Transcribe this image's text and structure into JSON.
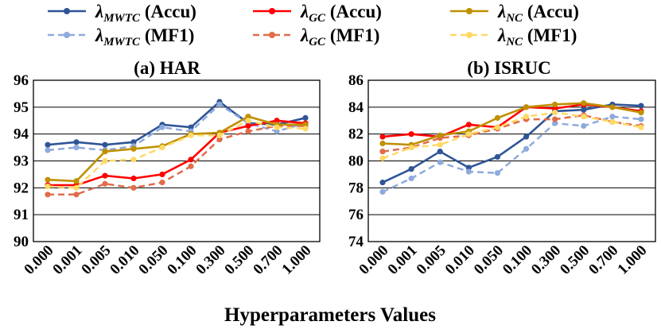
{
  "chart_data": [
    {
      "type": "line",
      "title": "(a) HAR",
      "xlabel": "Hyperparameters Values",
      "ylabel": "",
      "categories": [
        "0.000",
        "0.001",
        "0.005",
        "0.010",
        "0.050",
        "0.100",
        "0.300",
        "0.500",
        "0.700",
        "1.000"
      ],
      "ylim": [
        90,
        96
      ],
      "yticks": [
        "90",
        "91",
        "92",
        "93",
        "94",
        "95",
        "96"
      ],
      "series": [
        {
          "id": "mwtc-accu",
          "name": "MWTC (Accu)",
          "color": "#2f5597",
          "dashed": false,
          "values": [
            93.6,
            93.7,
            93.6,
            93.7,
            94.35,
            94.25,
            95.2,
            94.4,
            94.35,
            94.6
          ]
        },
        {
          "id": "mwtc-mf1",
          "name": "MWTC (MF1)",
          "color": "#8faadc",
          "dashed": true,
          "values": [
            93.4,
            93.5,
            93.4,
            93.55,
            94.25,
            94.1,
            95.1,
            94.4,
            94.1,
            94.4
          ]
        },
        {
          "id": "gc-accu",
          "name": "GC (Accu)",
          "color": "#ff0000",
          "dashed": false,
          "values": [
            92.1,
            92.1,
            92.45,
            92.35,
            92.5,
            93.05,
            94.05,
            94.3,
            94.5,
            94.4
          ]
        },
        {
          "id": "gc-mf1",
          "name": "GC (MF1)",
          "color": "#e06c4a",
          "dashed": true,
          "values": [
            91.75,
            91.75,
            92.15,
            92.0,
            92.2,
            92.8,
            93.8,
            94.1,
            94.3,
            94.3
          ]
        },
        {
          "id": "nc-accu",
          "name": "NC (Accu)",
          "color": "#bf9000",
          "dashed": false,
          "values": [
            92.3,
            92.25,
            93.35,
            93.45,
            93.55,
            94.0,
            94.05,
            94.65,
            94.35,
            94.35
          ]
        },
        {
          "id": "nc-mf1",
          "name": "NC (MF1)",
          "color": "#ffd966",
          "dashed": true,
          "values": [
            92.05,
            92.0,
            93.0,
            93.05,
            93.5,
            93.95,
            93.95,
            94.5,
            94.25,
            94.2
          ]
        }
      ]
    },
    {
      "type": "line",
      "title": "(b) ISRUC",
      "xlabel": "Hyperparameters Values",
      "ylabel": "",
      "categories": [
        "0.000",
        "0.001",
        "0.005",
        "0.010",
        "0.050",
        "0.100",
        "0.300",
        "0.500",
        "0.700",
        "1.000"
      ],
      "ylim": [
        74,
        86
      ],
      "yticks": [
        "74",
        "76",
        "78",
        "80",
        "82",
        "84",
        "86"
      ],
      "series": [
        {
          "id": "mwtc-accu",
          "name": "MWTC (Accu)",
          "color": "#2f5597",
          "dashed": false,
          "values": [
            78.4,
            79.4,
            80.7,
            79.5,
            80.3,
            81.8,
            83.7,
            83.8,
            84.2,
            84.1
          ]
        },
        {
          "id": "mwtc-mf1",
          "name": "MWTC (MF1)",
          "color": "#8faadc",
          "dashed": true,
          "values": [
            77.7,
            78.7,
            79.9,
            79.2,
            79.1,
            80.9,
            82.8,
            82.6,
            83.3,
            83.1
          ]
        },
        {
          "id": "gc-accu",
          "name": "GC (Accu)",
          "color": "#ff0000",
          "dashed": false,
          "values": [
            81.8,
            82.0,
            81.8,
            82.7,
            82.5,
            84.0,
            83.9,
            84.2,
            84.0,
            83.7
          ]
        },
        {
          "id": "gc-mf1",
          "name": "GC (MF1)",
          "color": "#e06c4a",
          "dashed": true,
          "values": [
            80.7,
            81.0,
            81.7,
            81.9,
            82.4,
            83.1,
            83.1,
            83.4,
            82.9,
            82.6
          ]
        },
        {
          "id": "nc-accu",
          "name": "NC (Accu)",
          "color": "#bf9000",
          "dashed": false,
          "values": [
            81.3,
            81.2,
            81.9,
            82.2,
            83.2,
            84.0,
            84.2,
            84.3,
            84.0,
            83.6
          ]
        },
        {
          "id": "nc-mf1",
          "name": "NC (MF1)",
          "color": "#ffd966",
          "dashed": true,
          "values": [
            80.2,
            81.0,
            81.2,
            82.0,
            82.5,
            83.3,
            83.6,
            83.3,
            82.9,
            82.5
          ]
        }
      ]
    }
  ],
  "legend": {
    "lambda": "λ",
    "items": [
      {
        "sub": "MWTC",
        "metric": " (Accu)",
        "color": "#2f5597",
        "dashed": false
      },
      {
        "sub": "GC",
        "metric": " (Accu)",
        "color": "#ff0000",
        "dashed": false
      },
      {
        "sub": "NC",
        "metric": " (Accu)",
        "color": "#bf9000",
        "dashed": false
      },
      {
        "sub": "MWTC",
        "metric": " (MF1)",
        "color": "#8faadc",
        "dashed": true
      },
      {
        "sub": "GC",
        "metric": " (MF1)",
        "color": "#e06c4a",
        "dashed": true
      },
      {
        "sub": "NC",
        "metric": " (MF1)",
        "color": "#ffd966",
        "dashed": true
      }
    ]
  }
}
